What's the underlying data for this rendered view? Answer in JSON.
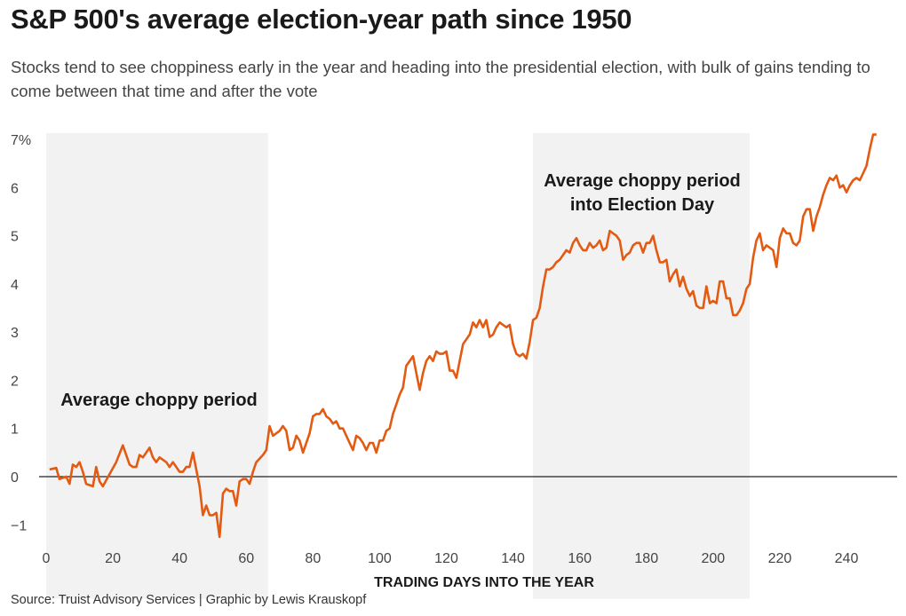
{
  "chart_data": {
    "type": "line",
    "title": "S&P 500's average election-year path since 1950",
    "subtitle": "Stocks tend to see choppiness early in the year and heading into the presidential election, with bulk of gains tending to come between that time and after the vote",
    "xlabel": "TRADING DAYS INTO THE YEAR",
    "ylabel": "",
    "xlim": [
      0,
      252
    ],
    "ylim": [
      -1.3,
      7.1
    ],
    "xticks": [
      0,
      20,
      40,
      60,
      80,
      100,
      120,
      140,
      160,
      180,
      200,
      220,
      240
    ],
    "yticks": [
      {
        "v": 7,
        "label": "7%"
      },
      {
        "v": 6,
        "label": "6"
      },
      {
        "v": 5,
        "label": "5"
      },
      {
        "v": 4,
        "label": "4"
      },
      {
        "v": 3,
        "label": "3"
      },
      {
        "v": 2,
        "label": "2"
      },
      {
        "v": 1,
        "label": "1"
      },
      {
        "v": 0,
        "label": "0"
      },
      {
        "v": -1,
        "label": "−1"
      }
    ],
    "grid": false,
    "line_color": "#e35a12",
    "shade_color": "#f2f2f2",
    "shaded_regions": [
      {
        "from": 0,
        "to": 66.5,
        "label": [
          "Average choppy period"
        ]
      },
      {
        "from": 146,
        "to": 211,
        "label": [
          "Average choppy period",
          "into Election Day"
        ]
      }
    ],
    "series": [
      {
        "x": [
          1,
          3,
          4,
          6,
          7,
          8,
          9,
          10,
          11,
          12,
          14,
          15,
          16,
          17,
          19,
          21,
          23,
          25,
          26,
          27,
          28,
          29,
          31,
          32,
          33,
          34,
          36,
          37,
          38,
          40,
          41,
          42,
          43,
          44,
          46,
          47,
          48,
          49,
          50,
          51,
          52,
          53,
          54,
          55,
          56,
          57,
          58,
          59,
          60,
          61,
          62,
          63,
          65,
          66,
          67,
          68,
          70,
          71,
          72,
          73,
          74,
          75,
          76,
          77,
          79,
          80,
          81,
          82,
          83,
          84,
          85,
          86,
          87,
          88,
          89,
          90,
          91,
          92,
          93,
          94,
          95,
          96,
          97,
          98,
          99,
          100,
          101,
          102,
          103,
          104,
          105,
          106,
          107,
          108,
          109,
          110,
          111,
          112,
          113,
          114,
          115,
          116,
          117,
          118,
          119,
          120,
          121,
          122,
          123,
          124,
          125,
          126,
          127,
          128,
          129,
          130,
          131,
          132,
          133,
          134,
          135,
          136,
          137,
          138,
          139,
          140,
          141,
          142,
          143,
          144,
          145,
          146,
          147,
          148,
          149,
          150,
          151,
          152,
          153,
          154,
          155,
          156,
          157,
          158,
          159,
          160,
          161,
          162,
          163,
          164,
          165,
          166,
          167,
          168,
          169,
          170,
          171,
          172,
          173,
          174,
          175,
          176,
          177,
          178,
          179,
          180,
          181,
          182,
          183,
          184,
          185,
          186,
          187,
          188,
          189,
          190,
          191,
          192,
          193,
          194,
          195,
          196,
          197,
          198,
          199,
          200,
          201,
          202,
          203,
          204,
          205,
          206,
          207,
          208,
          209,
          210,
          211,
          212,
          213,
          214,
          215,
          216,
          217,
          218,
          219,
          220,
          221,
          222,
          223,
          224,
          225,
          226,
          227,
          228,
          229,
          230,
          231,
          232,
          233,
          234,
          235,
          236,
          237,
          238,
          239,
          240,
          241,
          242,
          243,
          244,
          245,
          246,
          247,
          248,
          249
        ],
        "y": [
          0.15,
          0.18,
          -0.05,
          0.0,
          -0.15,
          0.25,
          0.2,
          0.3,
          0.1,
          -0.15,
          -0.2,
          0.2,
          -0.1,
          -0.2,
          0.05,
          0.3,
          0.65,
          0.25,
          0.2,
          0.2,
          0.45,
          0.4,
          0.6,
          0.4,
          0.3,
          0.4,
          0.3,
          0.2,
          0.3,
          0.1,
          0.1,
          0.2,
          0.2,
          0.5,
          -0.2,
          -0.8,
          -0.6,
          -0.8,
          -0.8,
          -0.75,
          -1.25,
          -0.35,
          -0.25,
          -0.3,
          -0.3,
          -0.6,
          -0.1,
          -0.05,
          -0.05,
          -0.15,
          0.1,
          0.3,
          0.45,
          0.55,
          1.05,
          0.85,
          0.95,
          1.05,
          0.95,
          0.55,
          0.6,
          0.85,
          0.75,
          0.5,
          0.9,
          1.25,
          1.3,
          1.3,
          1.4,
          1.25,
          1.2,
          1.1,
          1.15,
          1.0,
          1.0,
          0.85,
          0.7,
          0.55,
          0.85,
          0.8,
          0.7,
          0.55,
          0.7,
          0.7,
          0.5,
          0.75,
          0.75,
          0.95,
          1.0,
          1.3,
          1.5,
          1.7,
          1.85,
          2.3,
          2.4,
          2.5,
          2.15,
          1.8,
          2.15,
          2.4,
          2.5,
          2.4,
          2.6,
          2.55,
          2.55,
          2.6,
          2.2,
          2.2,
          2.05,
          2.4,
          2.75,
          2.85,
          2.95,
          3.2,
          3.1,
          3.25,
          3.1,
          3.25,
          2.9,
          2.95,
          3.1,
          3.2,
          3.15,
          3.1,
          3.15,
          2.75,
          2.55,
          2.5,
          2.55,
          2.45,
          2.8,
          3.25,
          3.3,
          3.5,
          3.95,
          4.3,
          4.3,
          4.35,
          4.45,
          4.5,
          4.6,
          4.7,
          4.65,
          4.85,
          4.95,
          4.8,
          4.7,
          4.7,
          4.85,
          4.75,
          4.8,
          4.9,
          4.7,
          4.75,
          5.1,
          5.05,
          5.0,
          4.9,
          4.5,
          4.6,
          4.65,
          4.8,
          4.85,
          4.85,
          4.65,
          4.85,
          4.85,
          5.0,
          4.7,
          4.45,
          4.45,
          4.5,
          4.05,
          4.2,
          4.3,
          3.95,
          4.15,
          3.9,
          3.75,
          3.85,
          3.55,
          3.5,
          3.5,
          3.95,
          3.6,
          3.65,
          3.6,
          4.05,
          4.05,
          3.7,
          3.7,
          3.35,
          3.35,
          3.45,
          3.6,
          3.9,
          4.0,
          4.55,
          4.9,
          5.05,
          4.7,
          4.8,
          4.75,
          4.7,
          4.35,
          4.95,
          5.15,
          5.05,
          5.05,
          4.85,
          4.8,
          4.9,
          5.4,
          5.55,
          5.55,
          5.1,
          5.4,
          5.6,
          5.85,
          6.05,
          6.2,
          6.15,
          6.25,
          6.0,
          6.05,
          5.9,
          6.05,
          6.15,
          6.2,
          6.15,
          6.3,
          6.45,
          6.8,
          7.1,
          7.1
        ]
      }
    ]
  },
  "source": "Source: Truist Advisory Services | Graphic by Lewis Krauskopf"
}
